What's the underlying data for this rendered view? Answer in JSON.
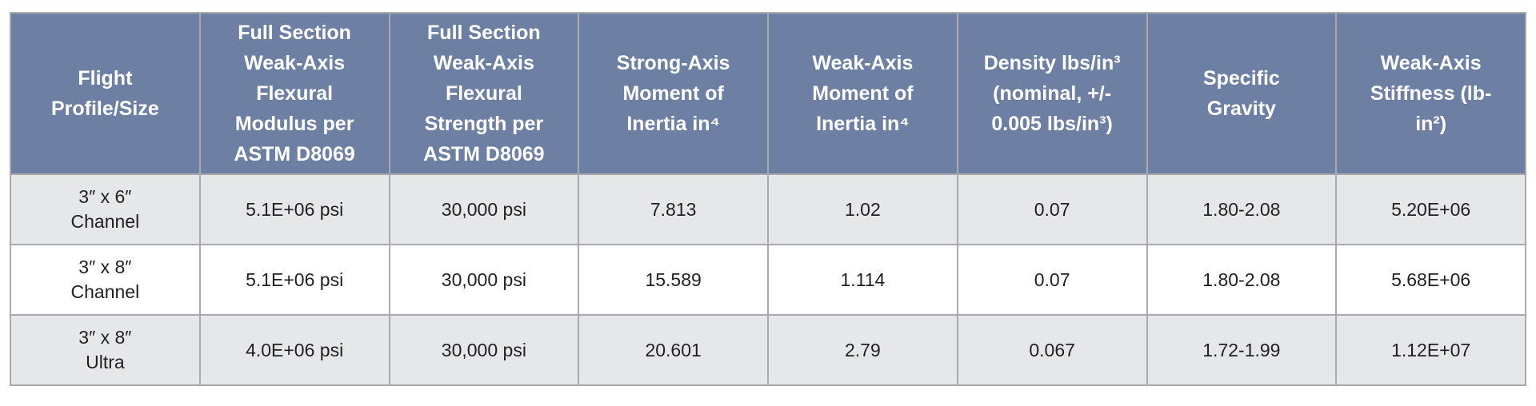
{
  "table": {
    "header": [
      "Flight Profile/Size",
      "Full Section Weak-Axis Flexural Modulus per ASTM D8069",
      "Full Section Weak-Axis Flexural Strength per ASTM D8069",
      "Strong-Axis Moment of Inertia in⁴",
      "Weak-Axis Moment of Inertia in⁴",
      "Density lbs/in³ (nominal, +/- 0.005 lbs/in³)",
      "Specific Gravity",
      "Weak-Axis Stiffness (lb-in²)"
    ],
    "rows": [
      [
        "3″ x 6″ Channel",
        "5.1E+06 psi",
        "30,000 psi",
        "7.813",
        "1.02",
        "0.07",
        "1.80-2.08",
        "5.20E+06"
      ],
      [
        "3″ x 8″ Channel",
        "5.1E+06 psi",
        "30,000 psi",
        "15.589",
        "1.114",
        "0.07",
        "1.80-2.08",
        "5.68E+06"
      ],
      [
        "3″ x 8″ Ultra",
        "4.0E+06 psi",
        "30,000 psi",
        "20.601",
        "2.79",
        "0.067",
        "1.72-1.99",
        "1.12E+07"
      ]
    ]
  }
}
